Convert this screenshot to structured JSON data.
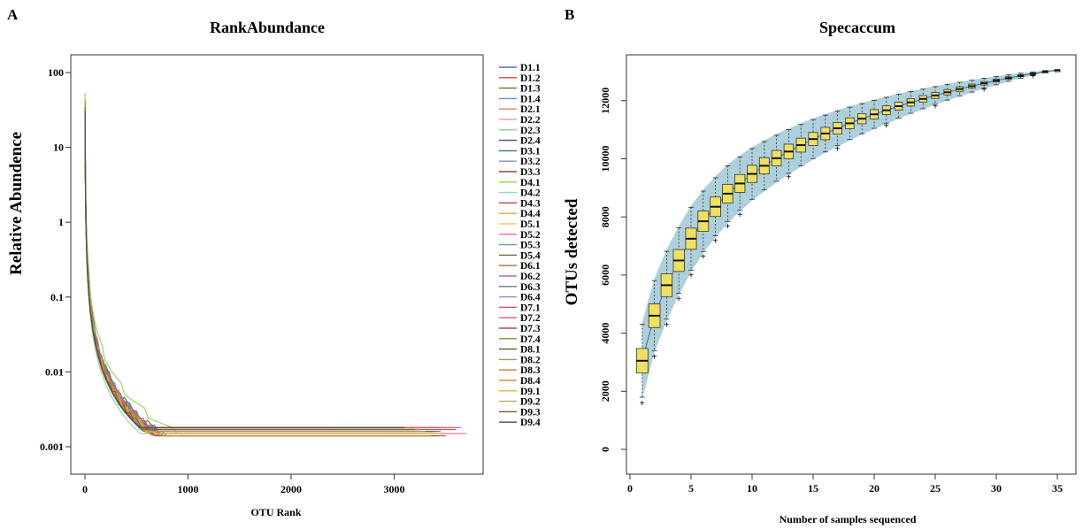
{
  "chart_data": [
    {
      "panel_label": "A",
      "type": "line",
      "title": "RankAbundance",
      "xlabel": "OTU Rank",
      "ylabel": "Relative Abundence",
      "x_scale": "linear",
      "y_scale": "log",
      "xlim": [
        0,
        3700
      ],
      "ylim": [
        0.001,
        100
      ],
      "x_ticks": [
        "0",
        "1000",
        "2000",
        "3000"
      ],
      "y_ticks": [
        "100",
        "10",
        "1",
        "0.1",
        "0.01",
        "0.001"
      ],
      "legend_position": "right",
      "series": [
        {
          "name": "D1.1",
          "color": "#4f6fc9",
          "max_rank": 3420,
          "top": 45
        },
        {
          "name": "D1.2",
          "color": "#d8464f",
          "max_rank": 3350,
          "top": 40
        },
        {
          "name": "D1.3",
          "color": "#5a7a3a",
          "max_rank": 3200,
          "top": 38
        },
        {
          "name": "D1.4",
          "color": "#6d8fd8",
          "max_rank": 3100,
          "top": 42
        },
        {
          "name": "D2.1",
          "color": "#e0825a",
          "max_rank": 3380,
          "top": 35
        },
        {
          "name": "D2.2",
          "color": "#e8a0a0",
          "max_rank": 3300,
          "top": 36
        },
        {
          "name": "D2.3",
          "color": "#8fcf9a",
          "max_rank": 2900,
          "top": 30
        },
        {
          "name": "D2.4",
          "color": "#4a4a6a",
          "max_rank": 3450,
          "top": 38
        },
        {
          "name": "D3.1",
          "color": "#3a7a4a",
          "max_rank": 3250,
          "top": 44
        },
        {
          "name": "D3.2",
          "color": "#7f8fbf",
          "max_rank": 3150,
          "top": 41
        },
        {
          "name": "D3.3",
          "color": "#8a4a2a",
          "max_rank": 3300,
          "top": 39
        },
        {
          "name": "D4.1",
          "color": "#9acd5a",
          "max_rank": 3500,
          "top": 60
        },
        {
          "name": "D4.2",
          "color": "#8fd4c8",
          "max_rank": 3000,
          "top": 33
        },
        {
          "name": "D4.3",
          "color": "#c83a3a",
          "max_rank": 3600,
          "top": 37
        },
        {
          "name": "D4.4",
          "color": "#f0a040",
          "max_rank": 3550,
          "top": 34
        },
        {
          "name": "D5.1",
          "color": "#f0d060",
          "max_rank": 3400,
          "top": 36
        },
        {
          "name": "D5.2",
          "color": "#e86aa0",
          "max_rank": 3700,
          "top": 40
        },
        {
          "name": "D5.3",
          "color": "#5aa0a0",
          "max_rank": 3350,
          "top": 38
        },
        {
          "name": "D5.4",
          "color": "#6a6a3a",
          "max_rank": 3250,
          "top": 35
        },
        {
          "name": "D6.1",
          "color": "#b86a3a",
          "max_rank": 3450,
          "top": 39
        },
        {
          "name": "D6.2",
          "color": "#c86a8a",
          "max_rank": 3300,
          "top": 41
        },
        {
          "name": "D6.3",
          "color": "#7a6a9a",
          "max_rank": 3200,
          "top": 37
        },
        {
          "name": "D6.4",
          "color": "#8a8ad8",
          "max_rank": 3150,
          "top": 36
        },
        {
          "name": "D7.1",
          "color": "#d8408a",
          "max_rank": 2400,
          "top": 42
        },
        {
          "name": "D7.2",
          "color": "#e05a7a",
          "max_rank": 3650,
          "top": 40
        },
        {
          "name": "D7.3",
          "color": "#b84a4a",
          "max_rank": 3500,
          "top": 38
        },
        {
          "name": "D7.4",
          "color": "#8a8a3a",
          "max_rank": 3300,
          "top": 36
        },
        {
          "name": "D8.1",
          "color": "#4a6a2a",
          "max_rank": 3400,
          "top": 35
        },
        {
          "name": "D8.2",
          "color": "#9aa050",
          "max_rank": 3250,
          "top": 37
        },
        {
          "name": "D8.3",
          "color": "#b88a2a",
          "max_rank": 2650,
          "top": 39
        },
        {
          "name": "D8.4",
          "color": "#c8943a",
          "max_rank": 3350,
          "top": 38
        },
        {
          "name": "D9.1",
          "color": "#f0b040",
          "max_rank": 3450,
          "top": 36
        },
        {
          "name": "D9.2",
          "color": "#c8a060",
          "max_rank": 3300,
          "top": 37
        },
        {
          "name": "D9.3",
          "color": "#7a5a3a",
          "max_rank": 3200,
          "top": 35
        },
        {
          "name": "D9.4",
          "color": "#4a4a4a",
          "max_rank": 3100,
          "top": 36
        }
      ]
    },
    {
      "panel_label": "B",
      "type": "box",
      "title": "Specaccum",
      "xlabel": "Number of samples sequenced",
      "ylabel": "OTUs detected",
      "xlim": [
        0,
        36
      ],
      "ylim": [
        -500,
        13500
      ],
      "x_ticks": [
        "0",
        "5",
        "10",
        "15",
        "20",
        "25",
        "30",
        "35"
      ],
      "y_ticks": [
        "0",
        "2000",
        "4000",
        "6000",
        "8000",
        "10000",
        "12000"
      ],
      "band_color": "#a9ceda",
      "box_color": "#f0e060",
      "x": [
        1,
        2,
        3,
        4,
        5,
        6,
        7,
        8,
        9,
        10,
        11,
        12,
        13,
        14,
        15,
        16,
        17,
        18,
        19,
        20,
        21,
        22,
        23,
        24,
        25,
        26,
        27,
        28,
        29,
        30,
        31,
        32,
        33,
        34,
        35
      ],
      "median": [
        3050,
        4600,
        5650,
        6500,
        7250,
        7850,
        8350,
        8800,
        9150,
        9480,
        9760,
        10020,
        10250,
        10470,
        10680,
        10870,
        11050,
        11220,
        11380,
        11530,
        11670,
        11810,
        11940,
        12060,
        12180,
        12290,
        12400,
        12500,
        12600,
        12690,
        12780,
        12860,
        12930,
        13000,
        13050
      ]
    }
  ]
}
